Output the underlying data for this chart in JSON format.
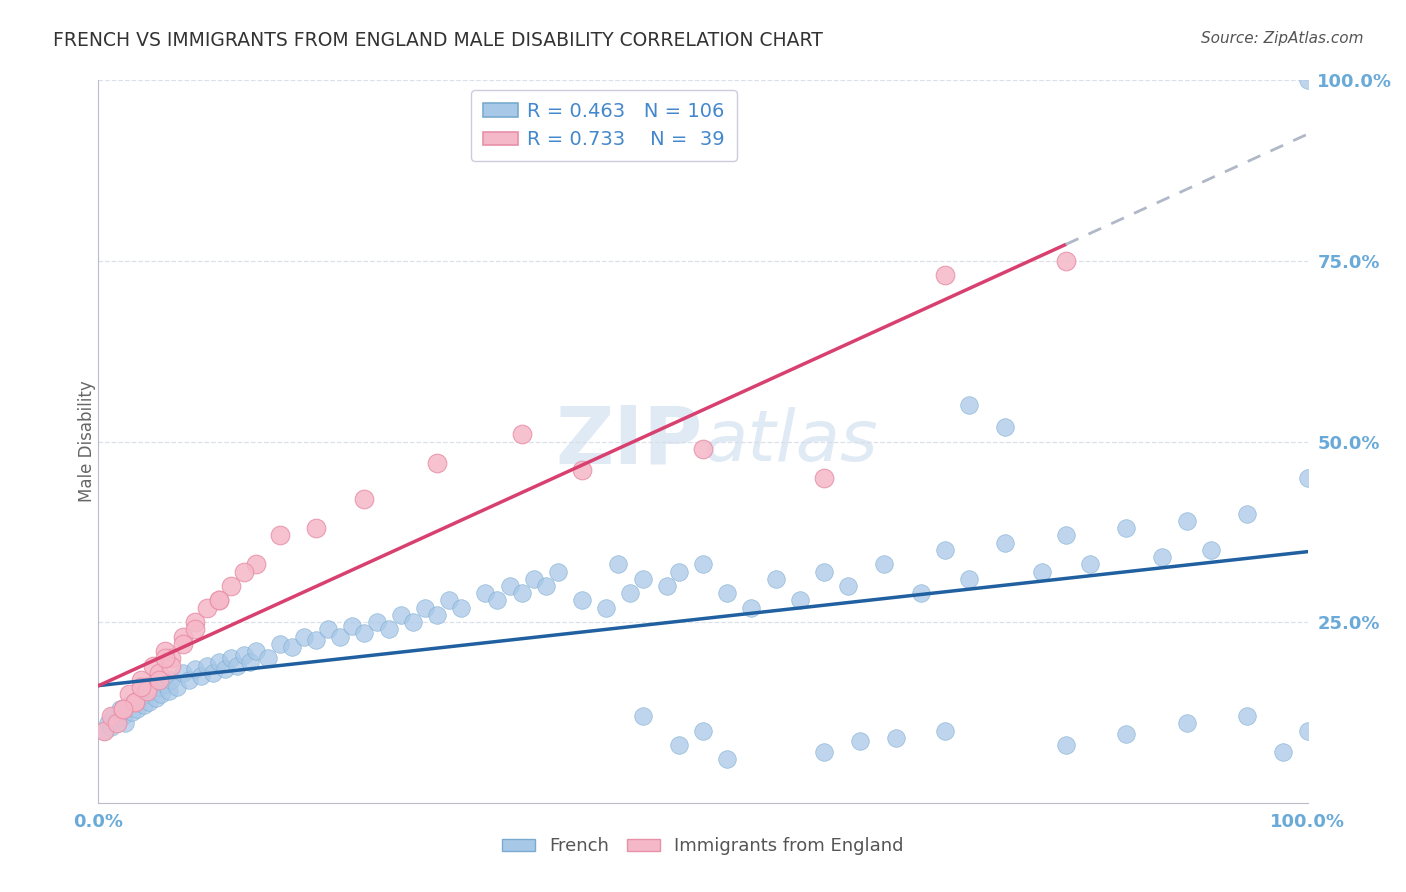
{
  "title": "FRENCH VS IMMIGRANTS FROM ENGLAND MALE DISABILITY CORRELATION CHART",
  "source": "Source: ZipAtlas.com",
  "ylabel": "Male Disability",
  "watermark": "ZIPAtlas",
  "R_french": 0.463,
  "N_french": 106,
  "R_england": 0.733,
  "N_england": 39,
  "blue_scatter_color": "#a8c8e8",
  "blue_scatter_edge": "#7aaad0",
  "pink_scatter_color": "#f5b8c8",
  "pink_scatter_edge": "#e890a8",
  "blue_line_color": "#2060a0",
  "pink_line_color": "#d84070",
  "dash_line_color": "#b0b8c8",
  "title_color": "#333333",
  "source_color": "#555555",
  "axis_tick_color": "#6aaad8",
  "ylabel_color": "#666666",
  "watermark_color": "#dce8f4",
  "legend_text_color": "#4488cc",
  "grid_color": "#d8dde8",
  "background_color": "#ffffff",
  "french_x": [
    0.5,
    0.8,
    1.0,
    1.2,
    1.5,
    1.8,
    2.0,
    2.2,
    2.5,
    2.8,
    3.0,
    3.2,
    3.5,
    3.8,
    4.0,
    4.2,
    4.5,
    4.8,
    5.0,
    5.2,
    5.5,
    5.8,
    6.0,
    6.5,
    7.0,
    7.5,
    8.0,
    8.5,
    9.0,
    9.5,
    10.0,
    10.5,
    11.0,
    11.5,
    12.0,
    12.5,
    13.0,
    14.0,
    15.0,
    16.0,
    17.0,
    18.0,
    19.0,
    20.0,
    21.0,
    22.0,
    23.0,
    24.0,
    25.0,
    26.0,
    27.0,
    28.0,
    29.0,
    30.0,
    32.0,
    33.0,
    34.0,
    35.0,
    36.0,
    37.0,
    38.0,
    40.0,
    42.0,
    43.0,
    44.0,
    45.0,
    47.0,
    48.0,
    50.0,
    52.0,
    54.0,
    56.0,
    58.0,
    60.0,
    62.0,
    65.0,
    68.0,
    70.0,
    72.0,
    75.0,
    78.0,
    80.0,
    82.0,
    85.0,
    88.0,
    90.0,
    92.0,
    95.0,
    72.0,
    75.0,
    45.0,
    48.0,
    50.0,
    52.0,
    60.0,
    63.0,
    66.0,
    70.0,
    80.0,
    85.0,
    90.0,
    95.0,
    98.0,
    100.0,
    100.0,
    100.0
  ],
  "french_y": [
    10.0,
    11.0,
    10.5,
    12.0,
    11.5,
    13.0,
    12.0,
    11.0,
    13.5,
    12.5,
    14.0,
    13.0,
    14.5,
    13.5,
    15.0,
    14.0,
    15.5,
    14.5,
    16.0,
    15.0,
    16.5,
    15.5,
    17.0,
    16.0,
    18.0,
    17.0,
    18.5,
    17.5,
    19.0,
    18.0,
    19.5,
    18.5,
    20.0,
    19.0,
    20.5,
    19.5,
    21.0,
    20.0,
    22.0,
    21.5,
    23.0,
    22.5,
    24.0,
    23.0,
    24.5,
    23.5,
    25.0,
    24.0,
    26.0,
    25.0,
    27.0,
    26.0,
    28.0,
    27.0,
    29.0,
    28.0,
    30.0,
    29.0,
    31.0,
    30.0,
    32.0,
    28.0,
    27.0,
    33.0,
    29.0,
    31.0,
    30.0,
    32.0,
    33.0,
    29.0,
    27.0,
    31.0,
    28.0,
    32.0,
    30.0,
    33.0,
    29.0,
    35.0,
    31.0,
    36.0,
    32.0,
    37.0,
    33.0,
    38.0,
    34.0,
    39.0,
    35.0,
    40.0,
    55.0,
    52.0,
    12.0,
    8.0,
    10.0,
    6.0,
    7.0,
    8.5,
    9.0,
    10.0,
    8.0,
    9.5,
    11.0,
    12.0,
    7.0,
    45.0,
    10.0,
    100.0
  ],
  "england_x": [
    0.5,
    1.0,
    1.5,
    2.0,
    2.5,
    3.0,
    3.5,
    4.0,
    4.5,
    5.0,
    5.5,
    6.0,
    7.0,
    8.0,
    9.0,
    10.0,
    11.0,
    13.0,
    15.0,
    3.0,
    4.0,
    5.0,
    6.0,
    7.0,
    8.0,
    10.0,
    12.0,
    18.0,
    22.0,
    28.0,
    35.0,
    40.0,
    50.0,
    60.0,
    70.0,
    80.0,
    2.0,
    3.5,
    5.5
  ],
  "england_y": [
    10.0,
    12.0,
    11.0,
    13.0,
    15.0,
    14.0,
    17.0,
    16.0,
    19.0,
    18.0,
    21.0,
    20.0,
    23.0,
    25.0,
    27.0,
    28.0,
    30.0,
    33.0,
    37.0,
    14.0,
    15.5,
    17.0,
    19.0,
    22.0,
    24.0,
    28.0,
    32.0,
    38.0,
    42.0,
    47.0,
    51.0,
    46.0,
    49.0,
    45.0,
    73.0,
    75.0,
    13.0,
    16.0,
    20.0
  ],
  "xlim": [
    0,
    100
  ],
  "ylim": [
    0,
    100
  ],
  "ytick_vals": [
    25,
    50,
    75,
    100
  ],
  "xtick_vals": [
    0,
    100
  ]
}
